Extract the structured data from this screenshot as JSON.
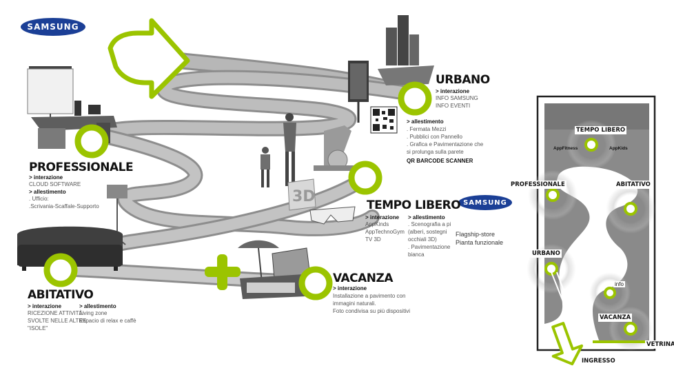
{
  "brand": {
    "logo_text": "SAMSUNG",
    "accent_color": "#9bc400",
    "logo_color": "#1b3f96"
  },
  "sections": {
    "professionale": {
      "title": "PROFESSIONALE",
      "interazione_label": "> interazione",
      "interazione_text": "CLOUD SOFTWARE",
      "allestimento_label": "> allestimento",
      "allestimento_text": ". Ufficio:\n.Scrivania-Scaffale-Supporto"
    },
    "urbano": {
      "title": "URBANO",
      "interazione_label": "> interazione",
      "interazione_text": "INFO SAMSUNG\nINFO EVENTI",
      "allestimento_label": "> allestimento",
      "allestimento_text": ". Fermata Mezzi\n. Pubblici con Pannello\n. Grafica e Pavimentazione che\nsi prolunga sulla parete",
      "qr_label": "QR BARCODE SCANNER"
    },
    "tempo_libero": {
      "title": "TEMPO LIBERO",
      "interazione_label": "> interazione",
      "interazione_text": "AppKinds\nAppTechnoGym\nTV 3D",
      "allestimento_label": "> allestimento",
      "allestimento_text": ". Scenografia a pi\n(alberi, sostegni\nocchiali 3D)\n. Pavimentazione\nbianca"
    },
    "abitativo": {
      "title": "ABITATIVO",
      "interazione_label": "> interazione",
      "interazione_text": "RICEZIONE ATTIVITÀ\nSVOLTE NELLE ALTRE\n\"ISOLE\"",
      "allestimento_label": "> allestimento",
      "allestimento_text": "Living zone\nEspacio di relax e caffè"
    },
    "vacanza": {
      "title": "VACANZA",
      "interazione_label": "> interazione",
      "interazione_text": "Installazione a pavimento con\nimmagini naturali.\nFoto condivisa su più dispositivi"
    }
  },
  "illustration_text": {
    "three_d": "3D"
  },
  "flagship": {
    "line1": "Flagship-store",
    "line2": "Pianta funzionale"
  },
  "floorplan": {
    "tempo_libero": "TEMPO LIBERO",
    "app_fitness": "AppFitness",
    "app_kids": "AppKids",
    "professionale": "PROFESSIONALE",
    "abitativo": "ABITATIVO",
    "urbano": "URBANO",
    "info": "info",
    "vacanza": "VACANZA",
    "vetrina": "VETRINA",
    "ingresso": "INGRESSO"
  }
}
